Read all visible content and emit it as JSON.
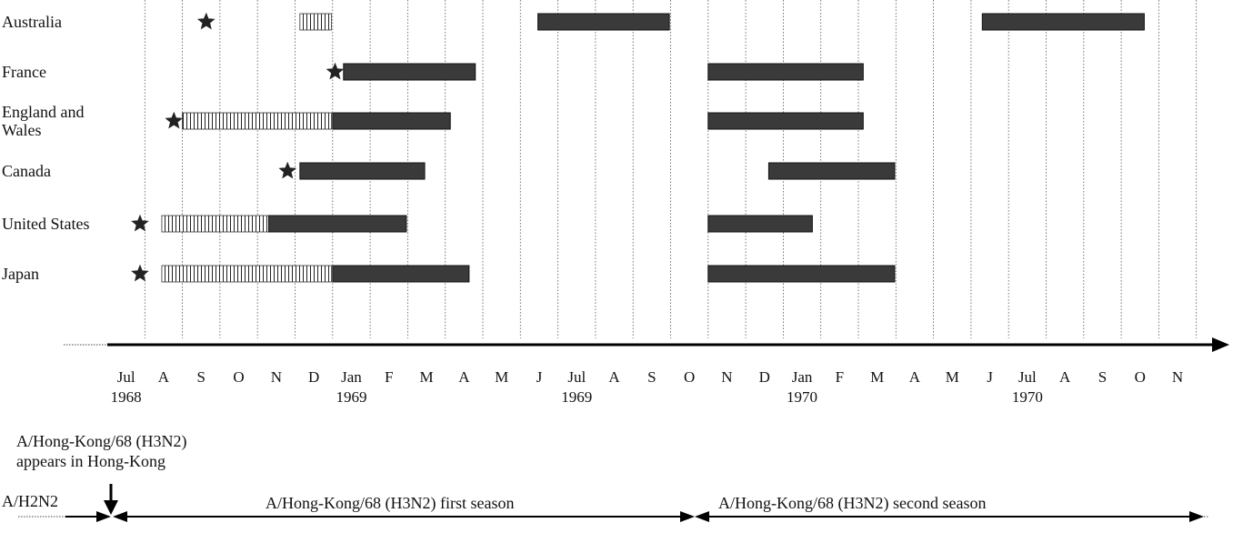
{
  "chart_data": {
    "type": "timeline",
    "title": "",
    "x_axis": {
      "range": [
        "1968-07",
        "1970-12"
      ],
      "months": [
        {
          "label": "Jul",
          "year": "1968"
        },
        {
          "label": "A"
        },
        {
          "label": "S"
        },
        {
          "label": "O"
        },
        {
          "label": "N"
        },
        {
          "label": "D"
        },
        {
          "label": "Jan",
          "year": "1969"
        },
        {
          "label": "F"
        },
        {
          "label": "M"
        },
        {
          "label": "A"
        },
        {
          "label": "M"
        },
        {
          "label": "J"
        },
        {
          "label": "Jul",
          "year": "1969"
        },
        {
          "label": "A"
        },
        {
          "label": "S"
        },
        {
          "label": "O"
        },
        {
          "label": "N"
        },
        {
          "label": "D"
        },
        {
          "label": "Jan",
          "year": "1970"
        },
        {
          "label": "F"
        },
        {
          "label": "M"
        },
        {
          "label": "A"
        },
        {
          "label": "M"
        },
        {
          "label": "J"
        },
        {
          "label": "Jul",
          "year": "1970"
        },
        {
          "label": "A"
        },
        {
          "label": "S"
        },
        {
          "label": "O"
        },
        {
          "label": "N"
        }
      ]
    },
    "legend": "none",
    "bar_color": "#3a3a3a",
    "rows": [
      {
        "country": "Australia",
        "first_case": "1968-09-20",
        "hatched": [
          {
            "start": "1968-12-05",
            "end": "1968-12-31"
          }
        ],
        "epidemics": [
          {
            "start": "1969-06-15",
            "end": "1969-09-30"
          },
          {
            "start": "1970-06-10",
            "end": "1970-10-20"
          }
        ]
      },
      {
        "country": "France",
        "first_case": "1969-01-03",
        "hatched": [],
        "epidemics": [
          {
            "start": "1969-01-10",
            "end": "1969-04-25"
          },
          {
            "start": "1969-11-01",
            "end": "1970-03-05"
          }
        ]
      },
      {
        "country": "England and Wales",
        "first_case": "1968-08-25",
        "hatched": [
          {
            "start": "1968-09-01",
            "end": "1968-12-31"
          }
        ],
        "epidemics": [
          {
            "start": "1969-01-01",
            "end": "1969-04-05"
          },
          {
            "start": "1969-11-01",
            "end": "1970-03-05"
          }
        ]
      },
      {
        "country": "Canada",
        "first_case": "1968-11-25",
        "hatched": [],
        "epidemics": [
          {
            "start": "1968-12-05",
            "end": "1969-03-15"
          },
          {
            "start": "1969-12-20",
            "end": "1970-03-31"
          }
        ]
      },
      {
        "country": "United States",
        "first_case": "1968-07-28",
        "hatched": [
          {
            "start": "1968-08-15",
            "end": "1968-11-10"
          }
        ],
        "epidemics": [
          {
            "start": "1968-11-10",
            "end": "1969-02-28"
          },
          {
            "start": "1969-11-01",
            "end": "1970-01-25"
          }
        ]
      },
      {
        "country": "Japan",
        "first_case": "1968-07-28",
        "hatched": [
          {
            "start": "1968-08-15",
            "end": "1968-12-31"
          }
        ],
        "epidemics": [
          {
            "start": "1969-01-01",
            "end": "1969-04-20"
          },
          {
            "start": "1969-11-01",
            "end": "1970-03-31"
          }
        ]
      }
    ],
    "annotations": {
      "emergence": "A/Hong-Kong/68 (H3N2) appears in Hong-Kong",
      "emergence_lines": [
        "A/Hong-Kong/68 (H3N2)",
        "appears in Hong-Kong"
      ],
      "prior_strain": "A/H2N2",
      "first_season": "A/Hong-Kong/68 (H3N2) first season",
      "second_season": "A/Hong-Kong/68 (H3N2) second season"
    }
  }
}
